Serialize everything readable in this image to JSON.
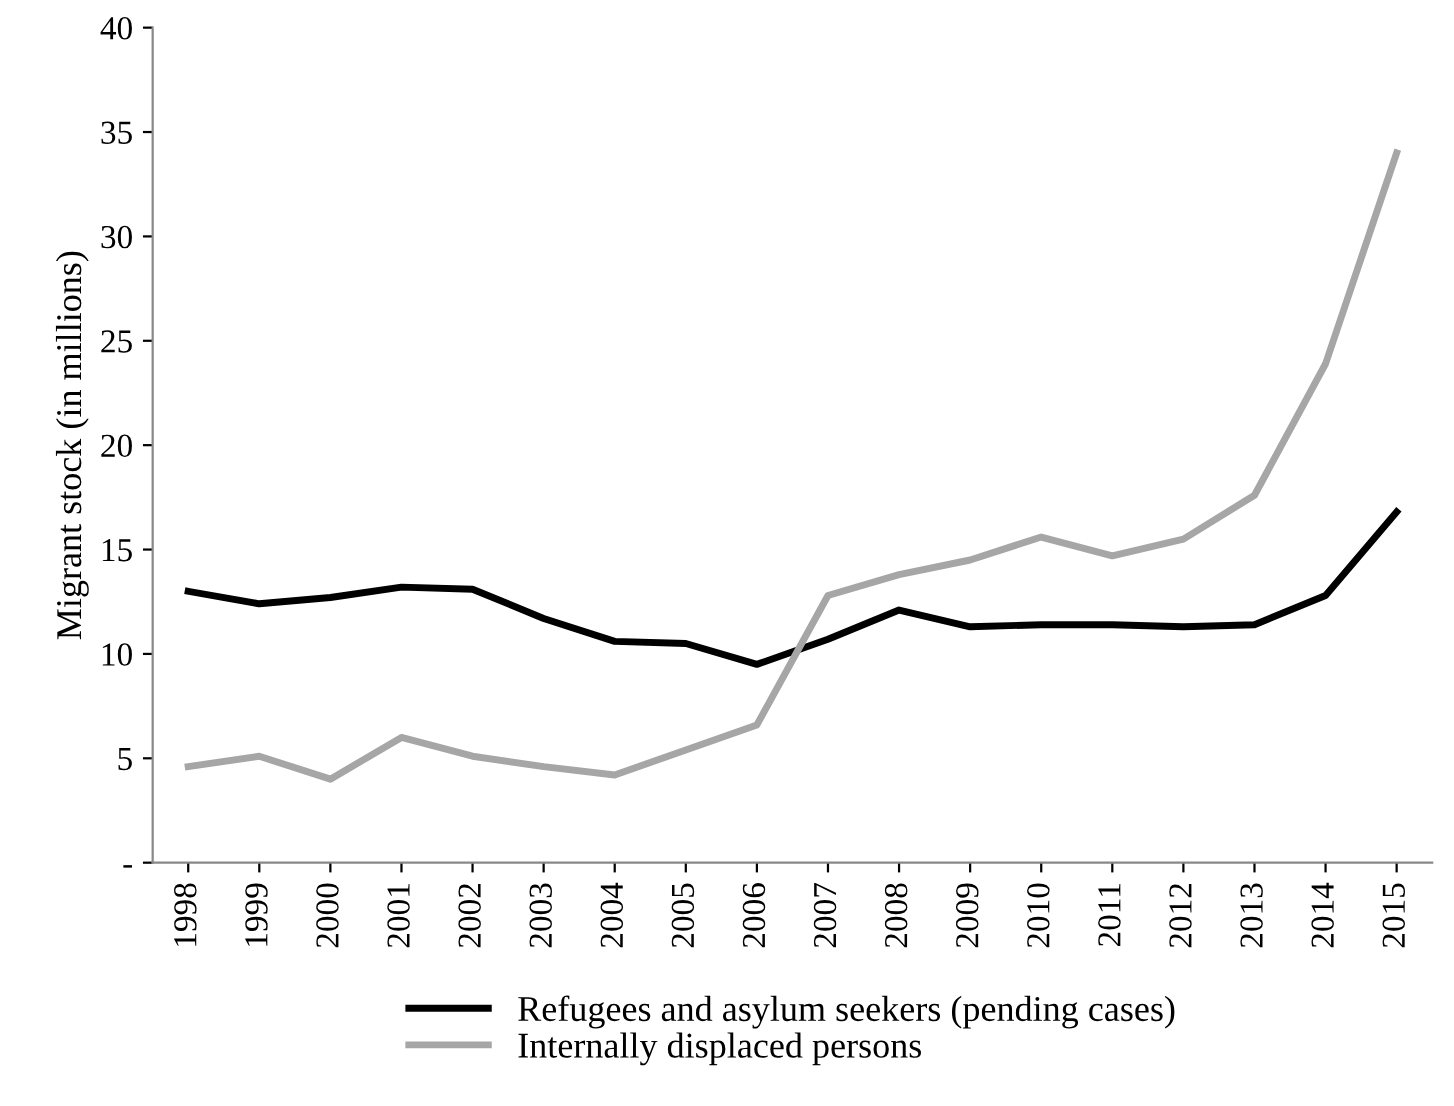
{
  "chart_data": {
    "type": "line",
    "ylabel": "Migrant stock (in millions)",
    "categories": [
      "1998",
      "1999",
      "2000",
      "2001",
      "2002",
      "2003",
      "2004",
      "2005",
      "2006",
      "2007",
      "2008",
      "2009",
      "2010",
      "2011",
      "2012",
      "2013",
      "2014",
      "2015"
    ],
    "series": [
      {
        "name": "Refugees and asylum seekers (pending cases)",
        "color": "#000000",
        "values": [
          13.0,
          12.4,
          12.7,
          13.2,
          13.1,
          11.7,
          10.6,
          10.5,
          9.5,
          10.7,
          12.1,
          11.3,
          11.4,
          11.4,
          11.3,
          11.4,
          12.8,
          16.8
        ]
      },
      {
        "name": "Internally displaced persons",
        "color": "#a6a6a6",
        "values": [
          4.6,
          5.1,
          4.0,
          6.0,
          5.1,
          4.6,
          4.2,
          5.4,
          6.6,
          12.8,
          13.8,
          14.5,
          15.6,
          14.7,
          15.5,
          17.6,
          23.9,
          34.0
        ]
      }
    ],
    "ylim": [
      0,
      40
    ],
    "yticks": [
      {
        "value": 0,
        "label": "-"
      },
      5,
      10,
      15,
      20,
      25,
      30,
      35,
      40
    ],
    "grid": false,
    "legend": "bottom",
    "marker": "none",
    "line_style": "solid"
  }
}
